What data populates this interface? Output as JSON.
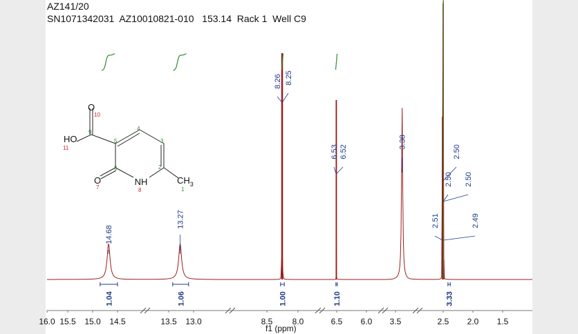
{
  "header": {
    "line1": "AZ141/20",
    "line2": "SN1071342031  AZ10010821-010   153.14  Rack 1  Well C9"
  },
  "colors": {
    "spectrum": "#9b1c1c",
    "peak_label": "#1a3a8a",
    "integral": "#2e8b2e",
    "atom_number_green": "#2e8b2e",
    "atom_number_red": "#cc2222"
  },
  "chart_data": {
    "type": "line",
    "title": "",
    "xlabel": "f1 (ppm)",
    "ylabel": "",
    "x_reversed": true,
    "xlim": [
      16.0,
      1.0
    ],
    "xticks": [
      "16.0",
      "15.5",
      "15.0",
      "14.5",
      "13.5",
      "13.0",
      "8.5",
      "8.0",
      "6.5",
      "6.0",
      "3.5",
      "2.5",
      "2.0",
      "1.5"
    ],
    "axis_breaks": [
      {
        "from": 14.3,
        "to": 13.6
      },
      {
        "from": 12.8,
        "to": 8.7
      },
      {
        "from": 7.8,
        "to": 6.8
      },
      {
        "from": 5.8,
        "to": 3.7
      },
      {
        "from": 3.3,
        "to": 2.7
      }
    ],
    "peaks": [
      {
        "ppm": 14.68,
        "height": 0.13,
        "kind": "broad"
      },
      {
        "ppm": 13.27,
        "height": 0.13,
        "kind": "broad"
      },
      {
        "ppm": 8.26,
        "height": 0.82,
        "kind": "sharp"
      },
      {
        "ppm": 8.25,
        "height": 0.82,
        "kind": "sharp"
      },
      {
        "ppm": 6.53,
        "height": 0.65,
        "kind": "sharp"
      },
      {
        "ppm": 6.52,
        "height": 0.65,
        "kind": "sharp"
      },
      {
        "ppm": 3.38,
        "height": 0.63,
        "kind": "medium"
      },
      {
        "ppm": 2.51,
        "height": 0.59,
        "kind": "sharp"
      },
      {
        "ppm": 2.5,
        "height": 1.0,
        "kind": "sharp"
      },
      {
        "ppm": 2.49,
        "height": 0.07,
        "kind": "sharp"
      }
    ],
    "peak_labels": [
      "14.68",
      "13.27",
      "8.26",
      "8.25",
      "6.53",
      "6.52",
      "3.38",
      "2.51",
      "2.50",
      "2.50",
      "2.50",
      "2.49"
    ],
    "integrals": [
      {
        "ppm": 14.68,
        "value": "1.04"
      },
      {
        "ppm": 13.27,
        "value": "1.06"
      },
      {
        "ppm": 8.25,
        "value": "1.00"
      },
      {
        "ppm": 6.52,
        "value": "1.10"
      },
      {
        "ppm": 2.3,
        "value": "3.33"
      }
    ]
  },
  "structure": {
    "atoms": {
      "HO": "HO",
      "O_top": "O",
      "O_left": "O",
      "NH": "NH",
      "CH": "CH",
      "CH_sub": "3"
    },
    "numbers": [
      "1",
      "2",
      "3",
      "4",
      "5",
      "6",
      "7",
      "8",
      "9",
      "10",
      "11"
    ]
  }
}
